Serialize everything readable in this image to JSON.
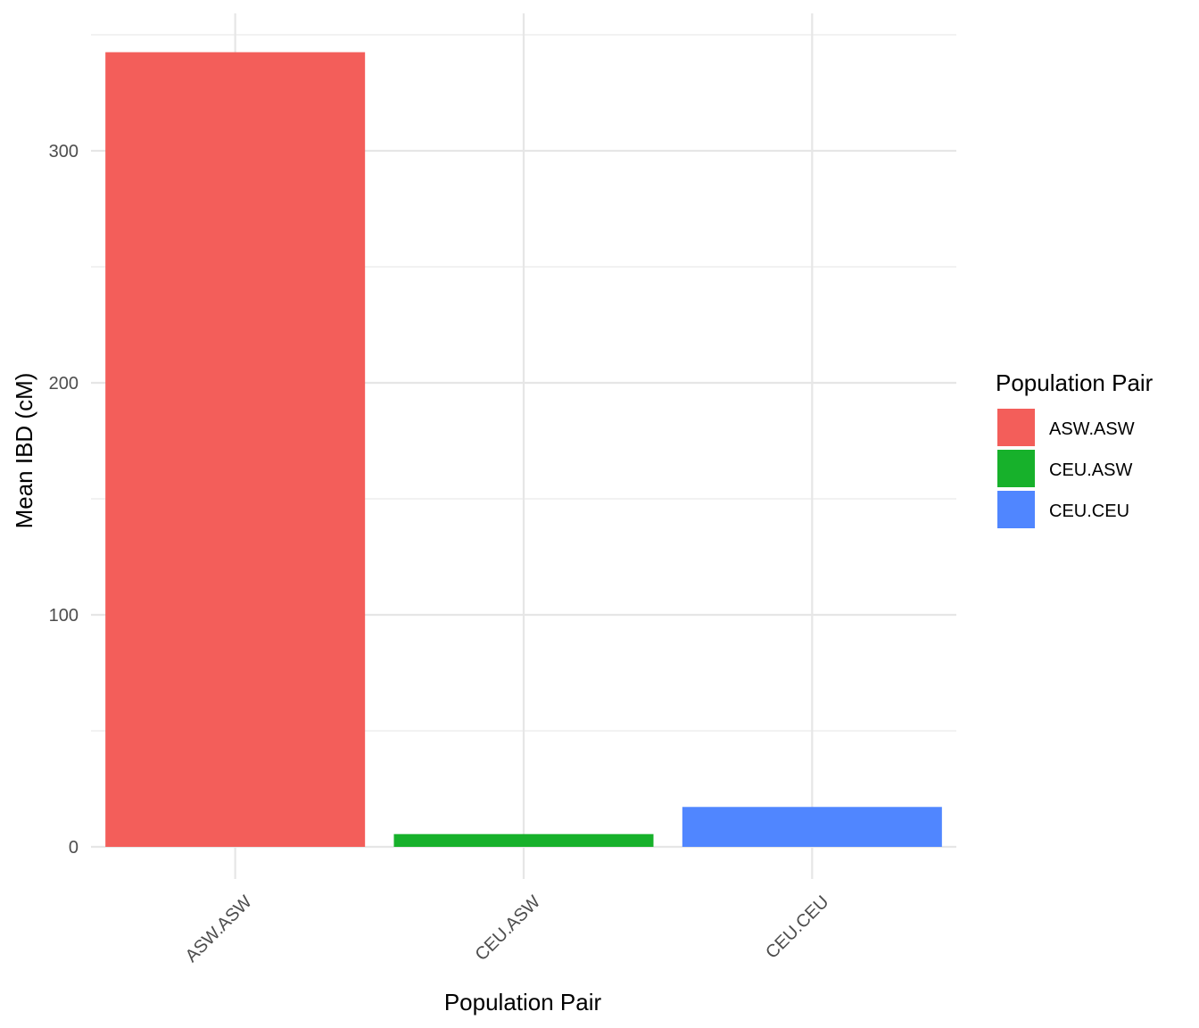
{
  "chart_data": {
    "type": "bar",
    "title": "",
    "xlabel": "Population Pair",
    "ylabel": "Mean IBD (cM)",
    "categories": [
      "ASW.ASW",
      "CEU.ASW",
      "CEU.CEU"
    ],
    "values": [
      342.5,
      5.5,
      17.2
    ],
    "colors": [
      "#F35E5A",
      "#17B12B",
      "#5086FF"
    ],
    "ylim": [
      -12,
      359
    ],
    "yticks": [
      0,
      100,
      200,
      300
    ],
    "ytick_labels": [
      "0",
      "100",
      "200",
      "300"
    ],
    "grid": true,
    "legend": {
      "title": "Population Pair",
      "placement": "right",
      "entries": [
        "ASW.ASW",
        "CEU.ASW",
        "CEU.CEU"
      ]
    }
  }
}
